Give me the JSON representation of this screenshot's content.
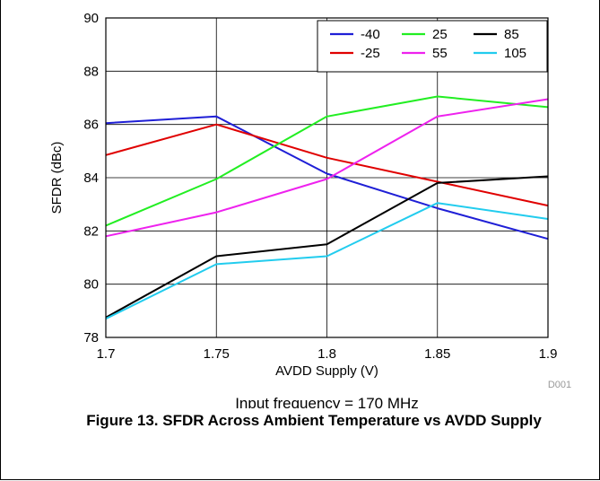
{
  "chart_data": {
    "type": "line",
    "title": "",
    "xlabel": "AVDD Supply (V)",
    "ylabel": "SFDR (dBc)",
    "xlim": [
      1.7,
      1.9
    ],
    "ylim": [
      78,
      90
    ],
    "xticks": [
      1.7,
      1.75,
      1.8,
      1.85,
      1.9
    ],
    "xtick_labels": [
      "1.7",
      "1.75",
      "1.8",
      "1.85",
      "1.9"
    ],
    "yticks": [
      78,
      80,
      82,
      84,
      86,
      88,
      90
    ],
    "grid": true,
    "legend_placement": "top-right",
    "x": [
      1.7,
      1.75,
      1.8,
      1.85,
      1.9
    ],
    "series": [
      {
        "name": "-40",
        "color": "#1f1fd6",
        "values": [
          86.05,
          86.3,
          84.15,
          82.85,
          81.7
        ]
      },
      {
        "name": "-25",
        "color": "#e00000",
        "values": [
          84.85,
          86.0,
          84.75,
          83.85,
          82.95
        ]
      },
      {
        "name": "25",
        "color": "#22ee22",
        "values": [
          82.2,
          83.95,
          86.3,
          87.05,
          86.65
        ]
      },
      {
        "name": "55",
        "color": "#ee22ee",
        "values": [
          81.8,
          82.7,
          83.95,
          86.3,
          86.95
        ]
      },
      {
        "name": "85",
        "color": "#000000",
        "values": [
          78.75,
          81.05,
          81.5,
          83.8,
          84.05
        ]
      },
      {
        "name": "105",
        "color": "#22ccee",
        "values": [
          78.7,
          80.75,
          81.05,
          83.05,
          82.45
        ]
      }
    ],
    "figure_code": "D001",
    "annotation": "Input frequency = 170 MHz"
  },
  "caption": "Figure 13. SFDR Across Ambient Temperature vs AVDD Supply"
}
